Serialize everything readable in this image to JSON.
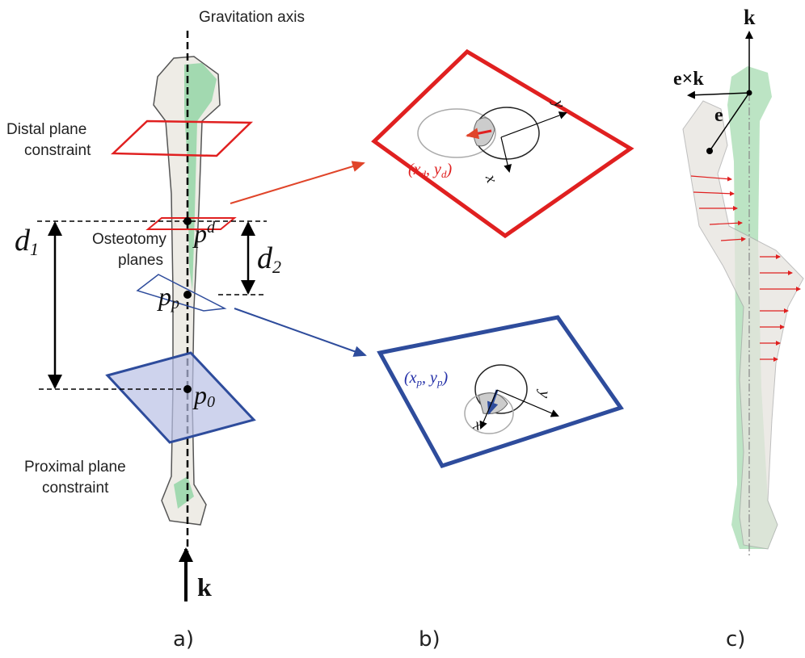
{
  "panel_a": {
    "axis_label": "Gravitation axis",
    "distal_label": [
      "Distal plane",
      "constraint"
    ],
    "osteotomy_label": [
      "Osteotomy",
      "planes"
    ],
    "proximal_label": [
      "Proximal plane",
      "constraint"
    ],
    "d1": [
      "d",
      "1"
    ],
    "d2": [
      "d",
      "2"
    ],
    "pd": [
      "p",
      "d"
    ],
    "pp": [
      "p",
      "p"
    ],
    "p0": [
      "p",
      "0"
    ],
    "k": "k",
    "caption": "a)"
  },
  "panel_b": {
    "distal_coords": [
      "(x",
      "d",
      ", y",
      "d",
      ")"
    ],
    "distal_y": "y",
    "distal_x": "x",
    "proximal_coords": [
      "(x",
      "p",
      ", y",
      "p",
      ")"
    ],
    "proximal_y": "y",
    "proximal_x": "x",
    "caption": "b)"
  },
  "panel_c": {
    "k": "k",
    "exk": "e×k",
    "e": "e",
    "caption": "c)"
  }
}
